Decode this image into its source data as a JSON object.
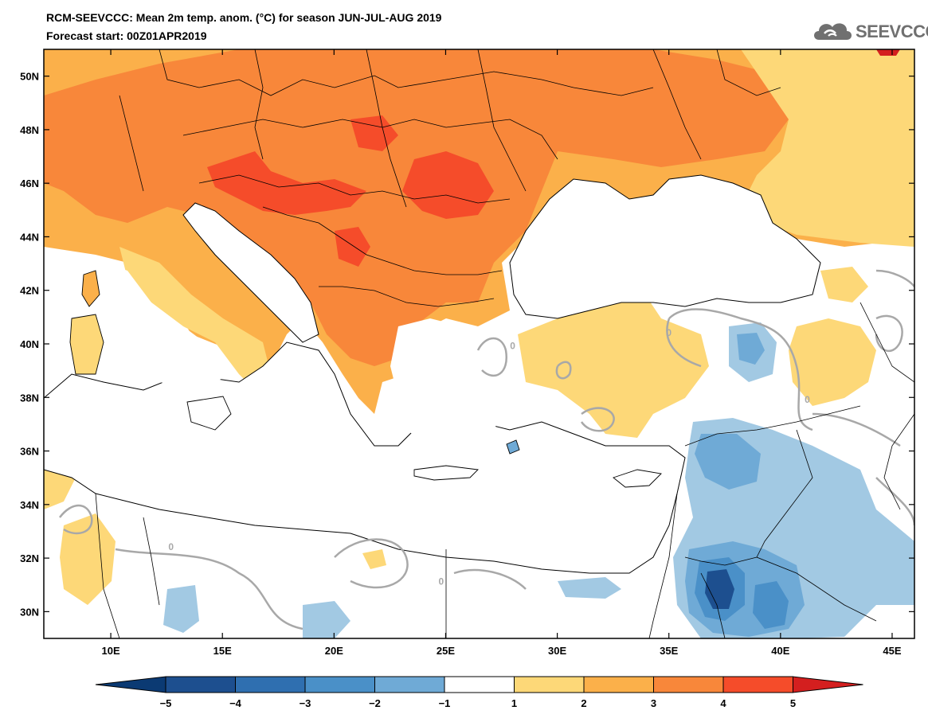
{
  "header": {
    "title_line1": "RCM-SEEVCCC: Mean 2m temp. anom. (°C) for season JUN-JUL-AUG 2019",
    "title_line2": "Forecast start: 00Z01APR2019"
  },
  "logo": {
    "text": "SEEVCCC",
    "icon": "cloud-icon"
  },
  "map": {
    "lon_range": [
      7,
      46
    ],
    "lat_range": [
      29,
      51
    ],
    "lat_ticks": [
      {
        "value": 30,
        "label": "30N"
      },
      {
        "value": 32,
        "label": "32N"
      },
      {
        "value": 34,
        "label": "34N"
      },
      {
        "value": 36,
        "label": "36N"
      },
      {
        "value": 38,
        "label": "38N"
      },
      {
        "value": 40,
        "label": "40N"
      },
      {
        "value": 42,
        "label": "42N"
      },
      {
        "value": 44,
        "label": "44N"
      },
      {
        "value": 46,
        "label": "46N"
      },
      {
        "value": 48,
        "label": "48N"
      },
      {
        "value": 50,
        "label": "50N"
      }
    ],
    "lon_ticks": [
      {
        "value": 10,
        "label": "10E"
      },
      {
        "value": 15,
        "label": "15E"
      },
      {
        "value": 20,
        "label": "20E"
      },
      {
        "value": 25,
        "label": "25E"
      },
      {
        "value": 30,
        "label": "30E"
      },
      {
        "value": 35,
        "label": "35E"
      },
      {
        "value": 40,
        "label": "40E"
      },
      {
        "value": 45,
        "label": "45E"
      }
    ],
    "contour_labels": [
      {
        "lon": 12.7,
        "lat": 32.3,
        "text": "0"
      },
      {
        "lon": 24.8,
        "lat": 31.0,
        "text": "0"
      },
      {
        "lon": 35.0,
        "lat": 40.3,
        "text": "0"
      },
      {
        "lon": 28.0,
        "lat": 39.8,
        "text": "0"
      },
      {
        "lon": 41.2,
        "lat": 37.8,
        "text": "0"
      }
    ]
  },
  "colorbar": {
    "labels": [
      "−5",
      "−4",
      "−3",
      "−2",
      "−1",
      "1",
      "2",
      "3",
      "4",
      "5"
    ],
    "colors": [
      "#1d4f8f",
      "#2f6fb0",
      "#4a90c8",
      "#6faad6",
      "#a2c9e3",
      "#ffffff",
      "#fdd878",
      "#fbb04a",
      "#f8873a",
      "#f54c2a",
      "#d9261c"
    ],
    "under_color": "#0b3a73",
    "over_color": "#d41f1f"
  },
  "palette": {
    "ocean": "#ffffff",
    "neutral_land": "#ffffff",
    "anom_1_2": "#fdd878",
    "anom_2_3": "#fbb04a",
    "anom_3_4": "#f8873a",
    "anom_4_5": "#f54c2a",
    "anom_m1_m2": "#a2c9e3",
    "anom_m2_m3": "#6faad6",
    "anom_m3_m4": "#4a90c8",
    "anom_m4_m5": "#2f6fb0",
    "anom_below_m5": "#1d4f8f",
    "zero_contour": "#a8a8a8",
    "border": "#000000"
  }
}
